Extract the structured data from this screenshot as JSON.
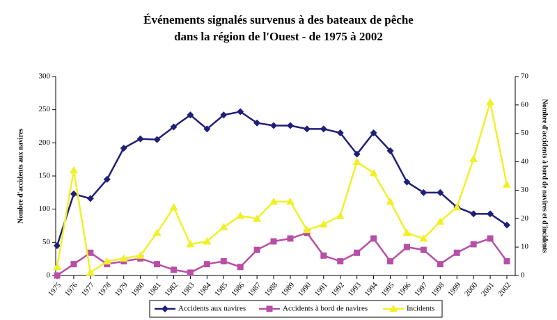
{
  "chart_data": {
    "type": "line",
    "title": [
      "Événements signalés survenus à des bateaux de pêche",
      "dans la région de l'Ouest - de 1975 à 2002"
    ],
    "y_label": "Nombre d'accidents aux navires",
    "y2_label": "Nombre d'accidents à bord de navires et d'incidents",
    "categories": [
      "1975",
      "1976",
      "1977",
      "1978",
      "1979",
      "1980",
      "1981",
      "1982",
      "1983",
      "1984",
      "1985",
      "1986",
      "1987",
      "1988",
      "1989",
      "1990",
      "1991",
      "1992",
      "1993",
      "1994",
      "1995",
      "1996",
      "1997",
      "1998",
      "1999",
      "2000",
      "2001",
      "2002"
    ],
    "series": [
      {
        "name": "Accidents aux navires",
        "color": "#1f1f78",
        "marker": "diamond",
        "axis": "y",
        "values": [
          45,
          123,
          116,
          145,
          192,
          206,
          205,
          224,
          242,
          221,
          242,
          247,
          230,
          226,
          226,
          221,
          221,
          215,
          183,
          215,
          188,
          141,
          125,
          125,
          103,
          93,
          93,
          76
        ]
      },
      {
        "name": "Accidents à bord de navires",
        "color": "#b84fa6",
        "marker": "square",
        "axis": "y2",
        "values": [
          0,
          4,
          8,
          4,
          5,
          6,
          4,
          2,
          1,
          4,
          5,
          3,
          9,
          12,
          13,
          15,
          7,
          5,
          8,
          13,
          5,
          10,
          9,
          4,
          8,
          11,
          13,
          5
        ]
      },
      {
        "name": "Incidents",
        "color": "#f0f028",
        "marker": "triangle",
        "axis": "y2",
        "values": [
          3,
          37,
          1,
          5,
          6,
          7,
          15,
          24,
          11,
          12,
          17,
          21,
          20,
          26,
          26,
          16,
          18,
          21,
          40,
          36,
          26,
          15,
          13,
          19,
          24,
          41,
          61,
          32
        ]
      }
    ],
    "ylim": [
      0,
      300
    ],
    "yticks": [
      0,
      50,
      100,
      150,
      200,
      250,
      300
    ],
    "y2lim": [
      0,
      70
    ],
    "y2ticks": [
      0,
      10,
      20,
      30,
      40,
      50,
      60,
      70
    ],
    "legend": "bottom"
  }
}
